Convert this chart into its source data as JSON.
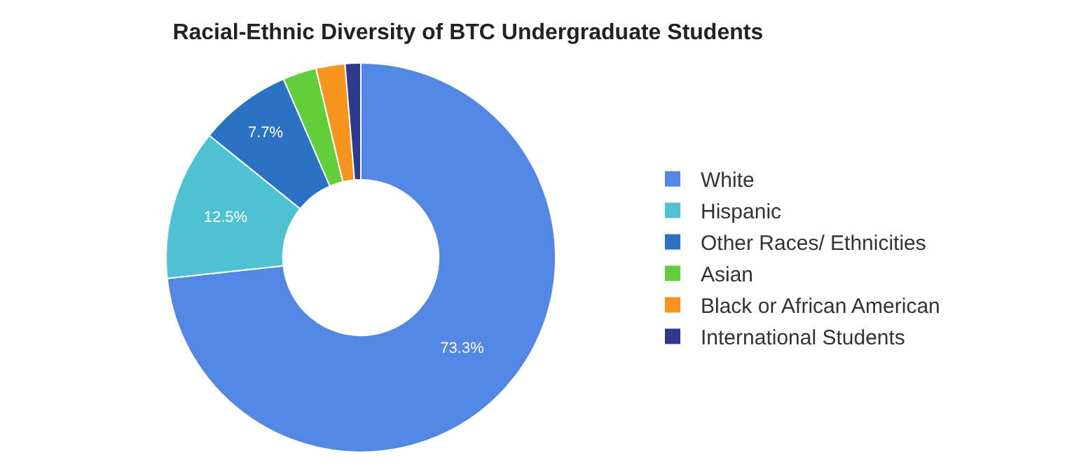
{
  "chart_data": {
    "type": "donut",
    "title": "Racial-Ethnic Diversity of BTC Undergraduate Students",
    "categories": [
      "White",
      "Hispanic",
      "Other Races/ Ethnicities",
      "Asian",
      "Black or African American",
      "International Students"
    ],
    "values": [
      73.3,
      12.5,
      7.7,
      2.8,
      2.4,
      1.3
    ],
    "value_labels": [
      "73.3%",
      "12.5%",
      "7.7%",
      null,
      null,
      null
    ],
    "colors": [
      "#5288e3",
      "#4ec2d0",
      "#2a72c4",
      "#60cf3a",
      "#f7941d",
      "#2d3a8e"
    ],
    "legend": "right"
  }
}
